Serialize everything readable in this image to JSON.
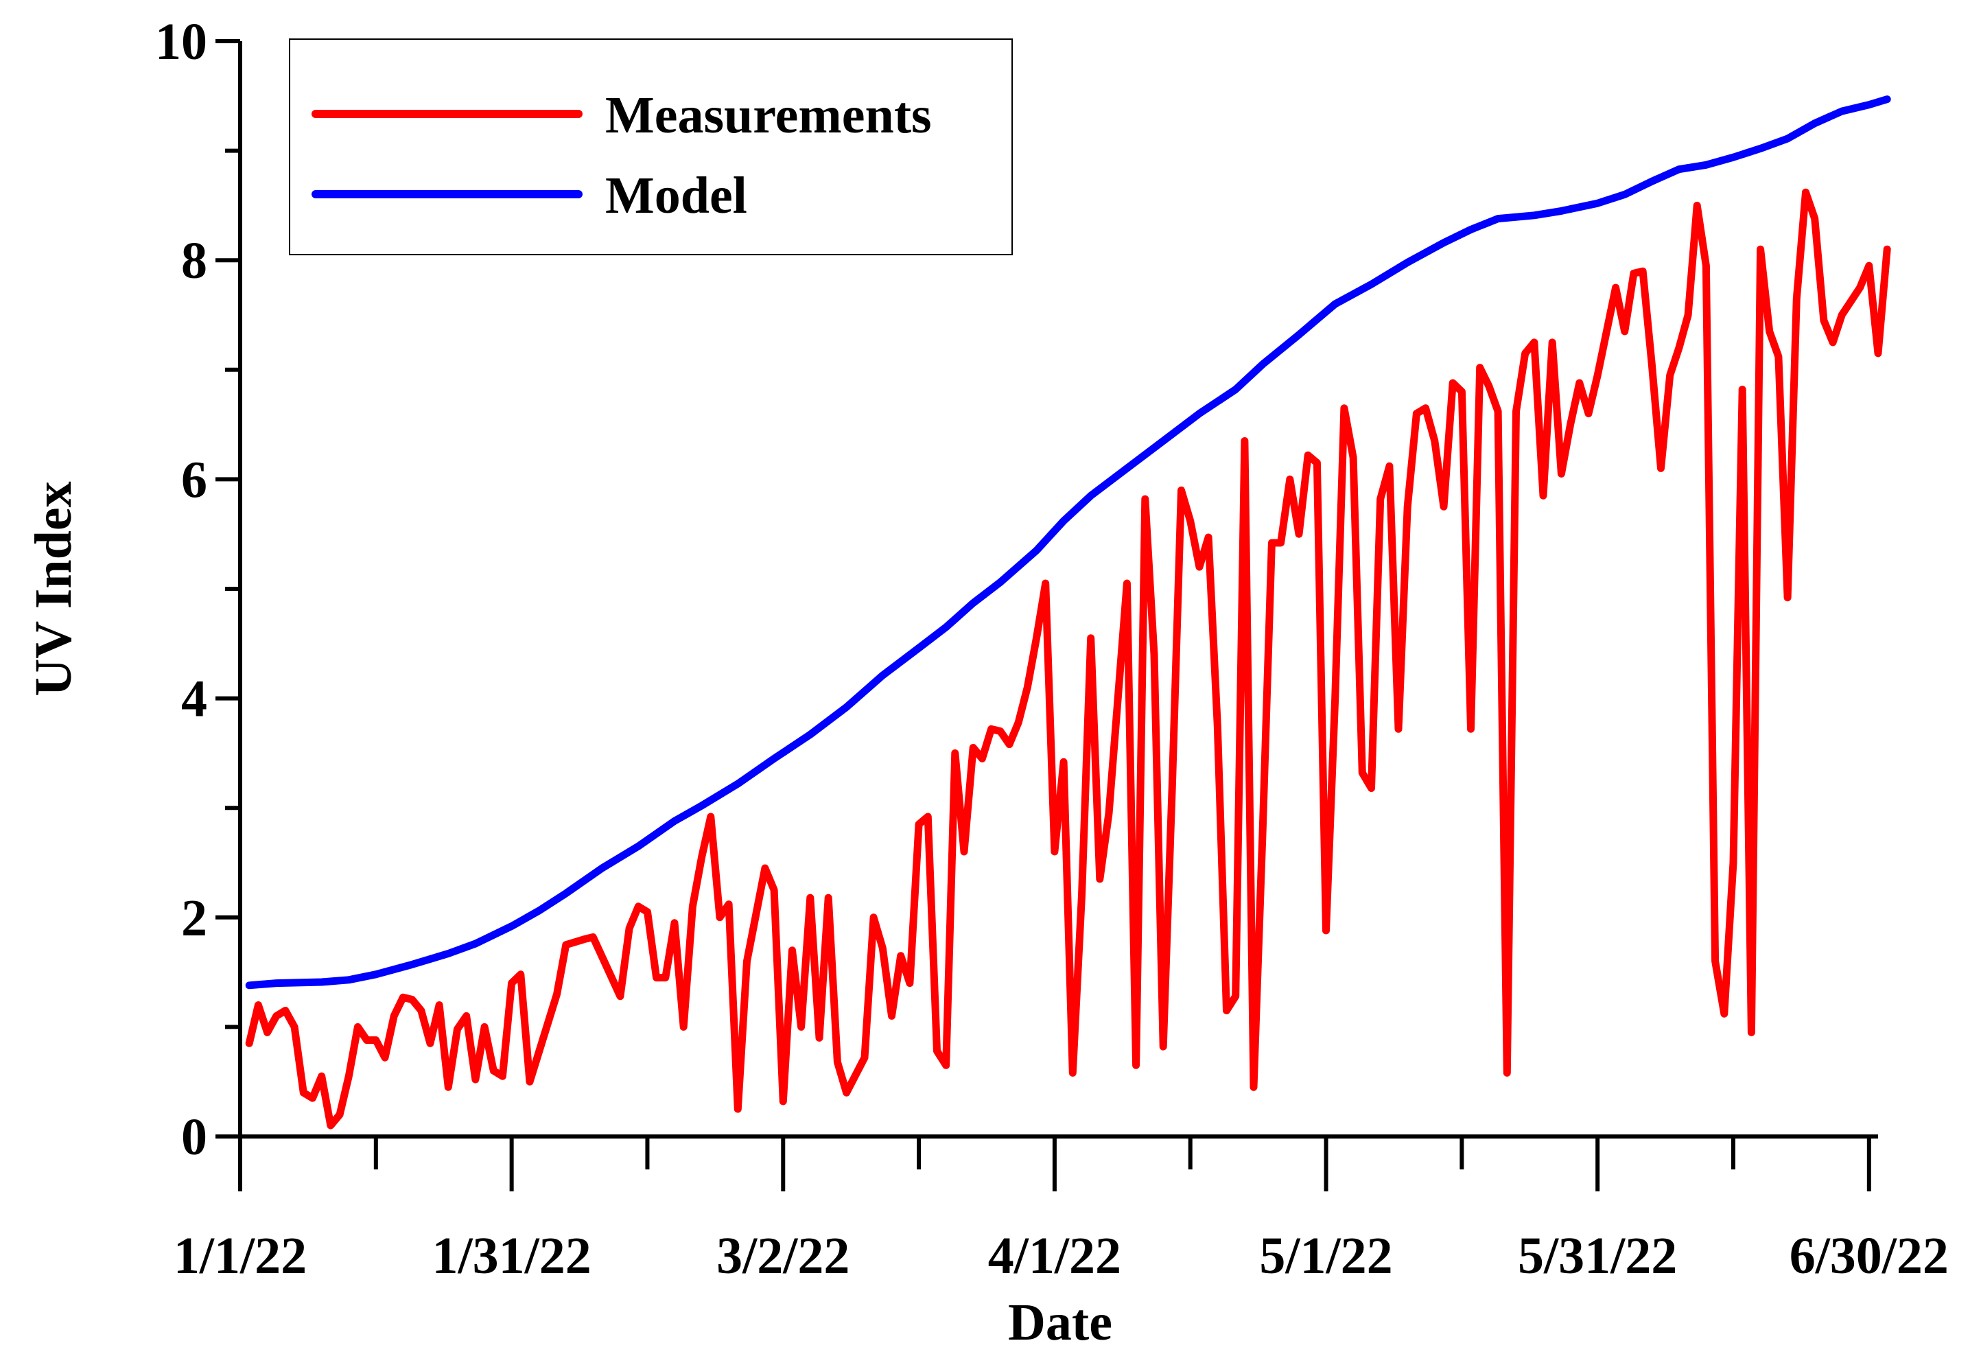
{
  "chart_data": {
    "type": "line",
    "xlabel": "Date",
    "ylabel": "UV Index",
    "xlim": [
      "2022-01-01",
      "2022-07-01"
    ],
    "ylim": [
      0,
      10
    ],
    "x_ticks": [
      {
        "date": "2022-01-01",
        "label": "1/1/22"
      },
      {
        "date": "2022-01-31",
        "label": "1/31/22"
      },
      {
        "date": "2022-03-02",
        "label": "3/2/22"
      },
      {
        "date": "2022-04-01",
        "label": "4/1/22"
      },
      {
        "date": "2022-05-01",
        "label": "5/1/22"
      },
      {
        "date": "2022-05-31",
        "label": "5/31/22"
      },
      {
        "date": "2022-06-30",
        "label": "6/30/22"
      }
    ],
    "y_ticks": [
      {
        "value": 0,
        "label": "0"
      },
      {
        "value": 2,
        "label": "2"
      },
      {
        "value": 4,
        "label": "4"
      },
      {
        "value": 6,
        "label": "6"
      },
      {
        "value": 8,
        "label": "8"
      },
      {
        "value": 10,
        "label": "10"
      }
    ],
    "grid": false,
    "legend": "top-left",
    "series": [
      {
        "name": "Measurements",
        "color": "#ff0000",
        "points": [
          [
            "2022-01-02",
            0.85
          ],
          [
            "2022-01-03",
            1.2
          ],
          [
            "2022-01-04",
            0.95
          ],
          [
            "2022-01-05",
            1.1
          ],
          [
            "2022-01-06",
            1.15
          ],
          [
            "2022-01-07",
            1.0
          ],
          [
            "2022-01-08",
            0.4
          ],
          [
            "2022-01-09",
            0.35
          ],
          [
            "2022-01-10",
            0.55
          ],
          [
            "2022-01-11",
            0.1
          ],
          [
            "2022-01-12",
            0.2
          ],
          [
            "2022-01-13",
            0.55
          ],
          [
            "2022-01-14",
            1.0
          ],
          [
            "2022-01-15",
            0.88
          ],
          [
            "2022-01-16",
            0.88
          ],
          [
            "2022-01-17",
            0.72
          ],
          [
            "2022-01-18",
            1.1
          ],
          [
            "2022-01-19",
            1.27
          ],
          [
            "2022-01-20",
            1.25
          ],
          [
            "2022-01-21",
            1.15
          ],
          [
            "2022-01-22",
            0.85
          ],
          [
            "2022-01-23",
            1.2
          ],
          [
            "2022-01-24",
            0.45
          ],
          [
            "2022-01-25",
            0.98
          ],
          [
            "2022-01-26",
            1.1
          ],
          [
            "2022-01-27",
            0.52
          ],
          [
            "2022-01-28",
            1.0
          ],
          [
            "2022-01-29",
            0.6
          ],
          [
            "2022-01-30",
            0.55
          ],
          [
            "2022-01-31",
            1.4
          ],
          [
            "2022-02-01",
            1.48
          ],
          [
            "2022-02-02",
            0.5
          ],
          [
            "2022-02-05",
            1.3
          ],
          [
            "2022-02-06",
            1.75
          ],
          [
            "2022-02-08",
            1.8
          ],
          [
            "2022-02-09",
            1.82
          ],
          [
            "2022-02-12",
            1.28
          ],
          [
            "2022-02-13",
            1.9
          ],
          [
            "2022-02-14",
            2.1
          ],
          [
            "2022-02-15",
            2.05
          ],
          [
            "2022-02-16",
            1.45
          ],
          [
            "2022-02-17",
            1.45
          ],
          [
            "2022-02-18",
            1.95
          ],
          [
            "2022-02-19",
            1.0
          ],
          [
            "2022-02-20",
            2.1
          ],
          [
            "2022-02-21",
            2.55
          ],
          [
            "2022-02-22",
            2.92
          ],
          [
            "2022-02-23",
            2.0
          ],
          [
            "2022-02-24",
            2.12
          ],
          [
            "2022-02-25",
            0.25
          ],
          [
            "2022-02-26",
            1.6
          ],
          [
            "2022-02-28",
            2.45
          ],
          [
            "2022-03-01",
            2.25
          ],
          [
            "2022-03-02",
            0.32
          ],
          [
            "2022-03-03",
            1.7
          ],
          [
            "2022-03-04",
            1.0
          ],
          [
            "2022-03-05",
            2.18
          ],
          [
            "2022-03-06",
            0.9
          ],
          [
            "2022-03-07",
            2.18
          ],
          [
            "2022-03-08",
            0.68
          ],
          [
            "2022-03-09",
            0.4
          ],
          [
            "2022-03-11",
            0.72
          ],
          [
            "2022-03-12",
            2.0
          ],
          [
            "2022-03-13",
            1.72
          ],
          [
            "2022-03-14",
            1.1
          ],
          [
            "2022-03-15",
            1.65
          ],
          [
            "2022-03-16",
            1.4
          ],
          [
            "2022-03-17",
            2.85
          ],
          [
            "2022-03-18",
            2.92
          ],
          [
            "2022-03-19",
            0.78
          ],
          [
            "2022-03-20",
            0.65
          ],
          [
            "2022-03-21",
            3.5
          ],
          [
            "2022-03-22",
            2.6
          ],
          [
            "2022-03-23",
            3.55
          ],
          [
            "2022-03-24",
            3.45
          ],
          [
            "2022-03-25",
            3.72
          ],
          [
            "2022-03-26",
            3.7
          ],
          [
            "2022-03-27",
            3.58
          ],
          [
            "2022-03-28",
            3.78
          ],
          [
            "2022-03-29",
            4.1
          ],
          [
            "2022-03-30",
            4.55
          ],
          [
            "2022-03-31",
            5.05
          ],
          [
            "2022-04-01",
            2.6
          ],
          [
            "2022-04-02",
            3.42
          ],
          [
            "2022-04-03",
            0.58
          ],
          [
            "2022-04-04",
            2.2
          ],
          [
            "2022-04-05",
            4.55
          ],
          [
            "2022-04-06",
            2.35
          ],
          [
            "2022-04-07",
            2.95
          ],
          [
            "2022-04-08",
            4.0
          ],
          [
            "2022-04-09",
            5.05
          ],
          [
            "2022-04-10",
            0.65
          ],
          [
            "2022-04-11",
            5.82
          ],
          [
            "2022-04-12",
            4.4
          ],
          [
            "2022-04-13",
            0.82
          ],
          [
            "2022-04-14",
            3.2
          ],
          [
            "2022-04-15",
            5.9
          ],
          [
            "2022-04-16",
            5.62
          ],
          [
            "2022-04-17",
            5.2
          ],
          [
            "2022-04-18",
            5.47
          ],
          [
            "2022-04-19",
            3.75
          ],
          [
            "2022-04-20",
            1.15
          ],
          [
            "2022-04-21",
            1.28
          ],
          [
            "2022-04-22",
            6.35
          ],
          [
            "2022-04-23",
            0.45
          ],
          [
            "2022-04-24",
            2.8
          ],
          [
            "2022-04-25",
            5.42
          ],
          [
            "2022-04-26",
            5.42
          ],
          [
            "2022-04-27",
            6.0
          ],
          [
            "2022-04-28",
            5.5
          ],
          [
            "2022-04-29",
            6.22
          ],
          [
            "2022-04-30",
            6.15
          ],
          [
            "2022-05-01",
            1.88
          ],
          [
            "2022-05-02",
            4.0
          ],
          [
            "2022-05-03",
            6.65
          ],
          [
            "2022-05-04",
            6.2
          ],
          [
            "2022-05-05",
            3.32
          ],
          [
            "2022-05-06",
            3.18
          ],
          [
            "2022-05-07",
            5.82
          ],
          [
            "2022-05-08",
            6.12
          ],
          [
            "2022-05-09",
            3.72
          ],
          [
            "2022-05-10",
            5.75
          ],
          [
            "2022-05-11",
            6.6
          ],
          [
            "2022-05-12",
            6.65
          ],
          [
            "2022-05-13",
            6.35
          ],
          [
            "2022-05-14",
            5.75
          ],
          [
            "2022-05-15",
            6.88
          ],
          [
            "2022-05-16",
            6.8
          ],
          [
            "2022-05-17",
            3.72
          ],
          [
            "2022-05-18",
            7.02
          ],
          [
            "2022-05-19",
            6.85
          ],
          [
            "2022-05-20",
            6.62
          ],
          [
            "2022-05-21",
            0.58
          ],
          [
            "2022-05-22",
            6.62
          ],
          [
            "2022-05-23",
            7.15
          ],
          [
            "2022-05-24",
            7.25
          ],
          [
            "2022-05-25",
            5.85
          ],
          [
            "2022-05-26",
            7.25
          ],
          [
            "2022-05-27",
            6.05
          ],
          [
            "2022-05-28",
            6.5
          ],
          [
            "2022-05-29",
            6.88
          ],
          [
            "2022-05-30",
            6.6
          ],
          [
            "2022-05-31",
            6.95
          ],
          [
            "2022-06-01",
            7.35
          ],
          [
            "2022-06-02",
            7.75
          ],
          [
            "2022-06-03",
            7.35
          ],
          [
            "2022-06-04",
            7.88
          ],
          [
            "2022-06-05",
            7.9
          ],
          [
            "2022-06-06",
            7.05
          ],
          [
            "2022-06-07",
            6.1
          ],
          [
            "2022-06-08",
            6.95
          ],
          [
            "2022-06-09",
            7.2
          ],
          [
            "2022-06-10",
            7.5
          ],
          [
            "2022-06-11",
            8.5
          ],
          [
            "2022-06-12",
            7.95
          ],
          [
            "2022-06-13",
            1.6
          ],
          [
            "2022-06-14",
            1.12
          ],
          [
            "2022-06-15",
            2.5
          ],
          [
            "2022-06-16",
            6.82
          ],
          [
            "2022-06-17",
            0.95
          ],
          [
            "2022-06-18",
            8.1
          ],
          [
            "2022-06-19",
            7.35
          ],
          [
            "2022-06-20",
            7.12
          ],
          [
            "2022-06-21",
            4.92
          ],
          [
            "2022-06-22",
            7.65
          ],
          [
            "2022-06-23",
            8.62
          ],
          [
            "2022-06-24",
            8.38
          ],
          [
            "2022-06-25",
            7.45
          ],
          [
            "2022-06-26",
            7.25
          ],
          [
            "2022-06-27",
            7.5
          ],
          [
            "2022-06-29",
            7.75
          ],
          [
            "2022-06-30",
            7.95
          ],
          [
            "2022-07-01",
            7.15
          ],
          [
            "2022-07-02",
            8.1
          ]
        ]
      },
      {
        "name": "Model",
        "color": "#0000ff",
        "points": [
          [
            "2022-01-02",
            1.38
          ],
          [
            "2022-01-05",
            1.4
          ],
          [
            "2022-01-10",
            1.41
          ],
          [
            "2022-01-13",
            1.43
          ],
          [
            "2022-01-16",
            1.48
          ],
          [
            "2022-01-20",
            1.57
          ],
          [
            "2022-01-24",
            1.67
          ],
          [
            "2022-01-27",
            1.76
          ],
          [
            "2022-01-31",
            1.92
          ],
          [
            "2022-02-03",
            2.06
          ],
          [
            "2022-02-06",
            2.22
          ],
          [
            "2022-02-10",
            2.45
          ],
          [
            "2022-02-14",
            2.65
          ],
          [
            "2022-02-18",
            2.88
          ],
          [
            "2022-02-21",
            3.02
          ],
          [
            "2022-02-25",
            3.22
          ],
          [
            "2022-03-01",
            3.45
          ],
          [
            "2022-03-05",
            3.67
          ],
          [
            "2022-03-09",
            3.92
          ],
          [
            "2022-03-13",
            4.21
          ],
          [
            "2022-03-17",
            4.46
          ],
          [
            "2022-03-20",
            4.65
          ],
          [
            "2022-03-23",
            4.87
          ],
          [
            "2022-03-26",
            5.06
          ],
          [
            "2022-03-30",
            5.35
          ],
          [
            "2022-04-02",
            5.62
          ],
          [
            "2022-04-05",
            5.85
          ],
          [
            "2022-04-09",
            6.1
          ],
          [
            "2022-04-13",
            6.35
          ],
          [
            "2022-04-17",
            6.6
          ],
          [
            "2022-04-21",
            6.82
          ],
          [
            "2022-04-24",
            7.05
          ],
          [
            "2022-04-28",
            7.32
          ],
          [
            "2022-05-02",
            7.6
          ],
          [
            "2022-05-06",
            7.78
          ],
          [
            "2022-05-10",
            7.98
          ],
          [
            "2022-05-14",
            8.16
          ],
          [
            "2022-05-17",
            8.28
          ],
          [
            "2022-05-20",
            8.38
          ],
          [
            "2022-05-24",
            8.41
          ],
          [
            "2022-05-27",
            8.45
          ],
          [
            "2022-05-31",
            8.52
          ],
          [
            "2022-06-03",
            8.6
          ],
          [
            "2022-06-06",
            8.72
          ],
          [
            "2022-06-09",
            8.83
          ],
          [
            "2022-06-12",
            8.87
          ],
          [
            "2022-06-15",
            8.94
          ],
          [
            "2022-06-18",
            9.02
          ],
          [
            "2022-06-21",
            9.11
          ],
          [
            "2022-06-24",
            9.25
          ],
          [
            "2022-06-27",
            9.36
          ],
          [
            "2022-06-30",
            9.42
          ],
          [
            "2022-07-02",
            9.47
          ]
        ]
      }
    ]
  }
}
